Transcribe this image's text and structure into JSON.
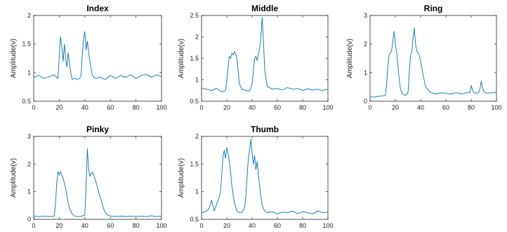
{
  "chart_data": [
    {
      "type": "line",
      "title": "Index",
      "ylabel": "Amplitude(v)",
      "xlim": [
        0,
        100
      ],
      "ylim": [
        0.5,
        2
      ],
      "xticks": [
        0,
        20,
        40,
        60,
        80,
        100
      ],
      "yticks": [
        0.5,
        1,
        1.5,
        2
      ],
      "ytick_labels": [
        "0.5",
        "1",
        "1.5",
        "2"
      ],
      "color": "#0072BD",
      "x": [
        0,
        4,
        8,
        12,
        16,
        19,
        20,
        21,
        22,
        23,
        24,
        25,
        26,
        27,
        28,
        29,
        30,
        32,
        34,
        36,
        37,
        38,
        39,
        40,
        41,
        42,
        43,
        44,
        45,
        46,
        48,
        52,
        56,
        60,
        64,
        68,
        72,
        76,
        80,
        84,
        88,
        92,
        96,
        100
      ],
      "y": [
        0.92,
        0.95,
        0.9,
        0.93,
        0.96,
        0.9,
        1.3,
        1.63,
        1.45,
        1.2,
        1.5,
        1.25,
        1.1,
        1.35,
        1.15,
        1.0,
        0.88,
        0.9,
        0.88,
        0.9,
        0.95,
        1.3,
        1.6,
        1.72,
        1.4,
        1.55,
        1.35,
        1.2,
        1.05,
        0.95,
        0.9,
        0.92,
        0.88,
        0.95,
        0.9,
        0.95,
        0.92,
        0.96,
        0.9,
        0.95,
        0.97,
        0.92,
        0.96,
        0.93
      ]
    },
    {
      "type": "line",
      "title": "Middle",
      "ylabel": "Amplitude(v)",
      "xlim": [
        0,
        100
      ],
      "ylim": [
        0.5,
        2.5
      ],
      "xticks": [
        0,
        20,
        40,
        60,
        80,
        100
      ],
      "yticks": [
        0.5,
        1,
        1.5,
        2,
        2.5
      ],
      "ytick_labels": [
        "0.5",
        "1",
        "1.5",
        "2",
        "2.5"
      ],
      "color": "#0072BD",
      "x": [
        0,
        4,
        8,
        12,
        16,
        19,
        20,
        21,
        22,
        23,
        24,
        25,
        26,
        27,
        28,
        29,
        30,
        32,
        34,
        36,
        38,
        40,
        41,
        42,
        43,
        44,
        45,
        46,
        47,
        48,
        49,
        50,
        52,
        56,
        60,
        64,
        68,
        72,
        76,
        80,
        84,
        88,
        92,
        96,
        100
      ],
      "y": [
        0.8,
        0.78,
        0.75,
        0.8,
        0.72,
        0.75,
        1.0,
        1.3,
        1.55,
        1.5,
        1.62,
        1.58,
        1.66,
        1.6,
        1.5,
        1.2,
        0.9,
        0.78,
        0.76,
        0.75,
        0.74,
        0.9,
        1.2,
        1.5,
        1.55,
        1.45,
        1.6,
        1.75,
        2.0,
        2.45,
        1.9,
        1.2,
        0.85,
        0.78,
        0.8,
        0.76,
        0.82,
        0.78,
        0.8,
        0.75,
        0.79,
        0.76,
        0.78,
        0.75,
        0.78
      ]
    },
    {
      "type": "line",
      "title": "Ring",
      "ylabel": "Amplitude(v)",
      "xlim": [
        0,
        100
      ],
      "ylim": [
        0,
        3
      ],
      "xticks": [
        0,
        20,
        40,
        60,
        80,
        100
      ],
      "yticks": [
        0,
        1,
        2,
        3
      ],
      "ytick_labels": [
        "0",
        "1",
        "2",
        "3"
      ],
      "color": "#0072BD",
      "x": [
        0,
        4,
        8,
        12,
        13,
        14,
        15,
        16,
        17,
        18,
        19,
        20,
        21,
        22,
        23,
        24,
        25,
        26,
        28,
        30,
        31,
        32,
        33,
        34,
        35,
        36,
        37,
        38,
        39,
        40,
        42,
        44,
        48,
        52,
        56,
        60,
        64,
        68,
        72,
        76,
        79,
        80,
        81,
        82,
        84,
        86,
        87,
        88,
        89,
        90,
        92,
        96,
        100
      ],
      "y": [
        0.15,
        0.15,
        0.18,
        0.2,
        0.5,
        1.2,
        1.6,
        1.7,
        1.75,
        2.1,
        2.45,
        2.0,
        1.7,
        1.3,
        0.8,
        0.45,
        0.3,
        0.25,
        0.2,
        0.3,
        1.0,
        1.6,
        1.75,
        2.2,
        2.55,
        2.0,
        1.75,
        1.7,
        1.6,
        1.4,
        0.9,
        0.5,
        0.3,
        0.25,
        0.3,
        0.28,
        0.25,
        0.3,
        0.25,
        0.3,
        0.3,
        0.55,
        0.4,
        0.3,
        0.28,
        0.3,
        0.45,
        0.7,
        0.45,
        0.35,
        0.28,
        0.3,
        0.3
      ]
    },
    {
      "type": "line",
      "title": "Pinky",
      "ylabel": "Amplitude(v)",
      "xlim": [
        0,
        100
      ],
      "ylim": [
        0,
        3
      ],
      "xticks": [
        0,
        20,
        40,
        60,
        80,
        100
      ],
      "yticks": [
        0,
        1,
        2,
        3
      ],
      "ytick_labels": [
        "0",
        "1",
        "2",
        "3"
      ],
      "color": "#0072BD",
      "x": [
        0,
        4,
        8,
        12,
        16,
        17,
        18,
        19,
        20,
        21,
        22,
        23,
        24,
        25,
        26,
        27,
        28,
        30,
        32,
        36,
        38,
        40,
        41,
        42,
        43,
        44,
        45,
        46,
        47,
        48,
        49,
        50,
        51,
        52,
        53,
        54,
        55,
        56,
        58,
        60,
        64,
        68,
        72,
        76,
        80,
        84,
        88,
        92,
        96,
        100
      ],
      "y": [
        0.12,
        0.1,
        0.12,
        0.1,
        0.12,
        0.5,
        1.3,
        1.72,
        1.6,
        1.72,
        1.6,
        1.5,
        1.3,
        1.1,
        0.85,
        0.6,
        0.4,
        0.2,
        0.12,
        0.1,
        0.12,
        0.15,
        1.2,
        2.55,
        1.8,
        1.55,
        1.65,
        1.7,
        1.6,
        1.45,
        1.3,
        1.15,
        0.95,
        0.8,
        0.65,
        0.5,
        0.35,
        0.25,
        0.15,
        0.12,
        0.1,
        0.12,
        0.1,
        0.12,
        0.1,
        0.12,
        0.1,
        0.13,
        0.1,
        0.12
      ]
    },
    {
      "type": "line",
      "title": "Thumb",
      "ylabel": "Amplitude(v)",
      "xlim": [
        0,
        100
      ],
      "ylim": [
        0.5,
        2
      ],
      "xticks": [
        0,
        20,
        40,
        60,
        80,
        100
      ],
      "yticks": [
        0.5,
        1,
        1.5,
        2
      ],
      "ytick_labels": [
        "0.5",
        "1",
        "1.5",
        "2"
      ],
      "color": "#0072BD",
      "x": [
        0,
        4,
        6,
        8,
        10,
        12,
        14,
        15,
        16,
        17,
        18,
        19,
        20,
        21,
        22,
        23,
        24,
        26,
        28,
        30,
        32,
        34,
        35,
        36,
        37,
        38,
        39,
        40,
        41,
        42,
        43,
        44,
        45,
        46,
        47,
        48,
        50,
        52,
        56,
        60,
        64,
        68,
        72,
        76,
        80,
        84,
        88,
        92,
        96,
        100
      ],
      "y": [
        0.62,
        0.65,
        0.7,
        0.85,
        0.65,
        0.78,
        0.9,
        1.0,
        1.3,
        1.65,
        1.75,
        1.6,
        1.8,
        1.7,
        1.55,
        1.35,
        1.1,
        0.8,
        0.65,
        0.62,
        0.63,
        0.7,
        0.9,
        1.25,
        1.6,
        1.75,
        1.95,
        1.7,
        1.5,
        1.65,
        1.4,
        1.55,
        1.3,
        1.1,
        0.9,
        0.75,
        0.65,
        0.62,
        0.64,
        0.6,
        0.63,
        0.62,
        0.65,
        0.6,
        0.64,
        0.62,
        0.6,
        0.65,
        0.62,
        0.63
      ]
    }
  ]
}
